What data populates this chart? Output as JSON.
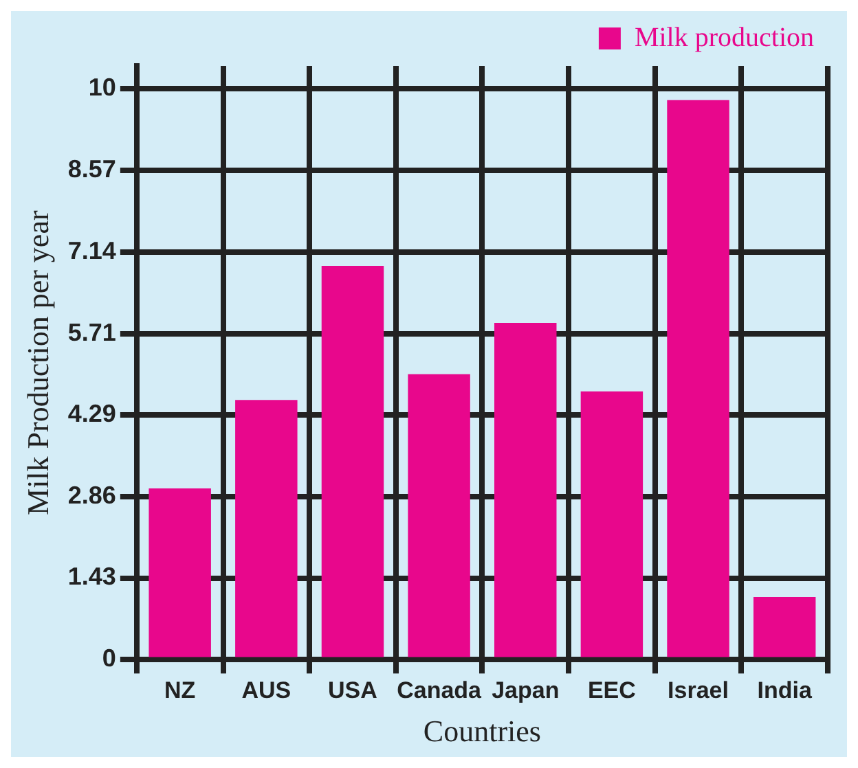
{
  "chart_data": {
    "type": "bar",
    "xlabel": "Countries",
    "ylabel": "Milk Production per year",
    "categories": [
      "NZ",
      "AUS",
      "USA",
      "Canada",
      "Japan",
      "EEC",
      "Israel",
      "India"
    ],
    "series": [
      {
        "name": "Milk production",
        "color": "#e8078c",
        "values": [
          3.0,
          4.55,
          6.9,
          5.0,
          5.9,
          4.7,
          9.8,
          1.1
        ]
      }
    ],
    "ylim": [
      0,
      10.4
    ],
    "yticks": [
      0,
      1.43,
      2.86,
      4.29,
      5.71,
      7.14,
      8.57,
      10
    ],
    "grid": true,
    "legend": "top right"
  }
}
